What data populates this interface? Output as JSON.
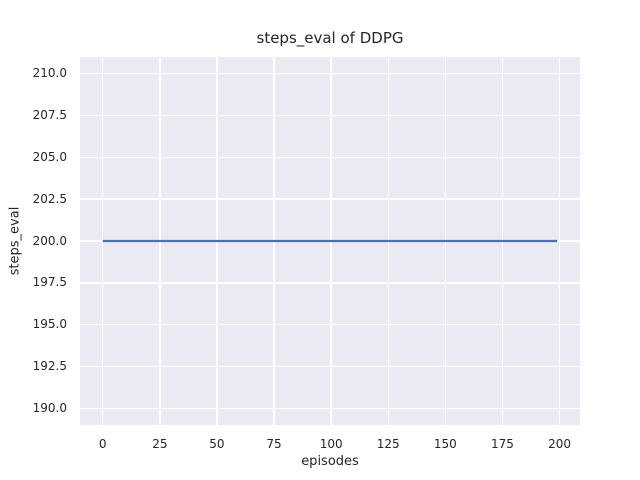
{
  "chart_data": {
    "type": "line",
    "title": "steps_eval of DDPG",
    "xlabel": "episodes",
    "ylabel": "steps_eval",
    "x_tick_values": [
      0,
      25,
      50,
      75,
      100,
      125,
      150,
      175,
      200
    ],
    "x_tick_labels": [
      "0",
      "25",
      "50",
      "75",
      "100",
      "125",
      "150",
      "175",
      "200"
    ],
    "y_tick_values": [
      190.0,
      192.5,
      195.0,
      197.5,
      200.0,
      202.5,
      205.0,
      207.5,
      210.0
    ],
    "y_tick_labels": [
      "190.0",
      "192.5",
      "195.0",
      "197.5",
      "200.0",
      "202.5",
      "205.0",
      "207.5",
      "210.0"
    ],
    "xlim": [
      -9.95,
      208.95
    ],
    "ylim": [
      189,
      211
    ],
    "grid": true,
    "legend": "none",
    "series": [
      {
        "name": "DDPG",
        "constant_y": 200,
        "x": [
          0,
          199
        ],
        "y": [
          200,
          200
        ]
      }
    ],
    "style": {
      "figure_bg": "#ffffff",
      "plot_bg": "#eaeaf2",
      "grid_color": "#ffffff",
      "line_color": "#4c72b0",
      "text_color": "#262626",
      "line_width": 2.2
    }
  }
}
